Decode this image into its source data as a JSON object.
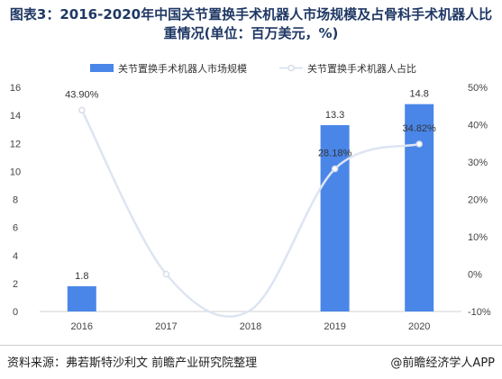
{
  "title": "图表3：2016-2020年中国关节置换手术机器人市场规模及占骨科手术机器人比重情况(单位：百万美元，%)",
  "source": "资料来源：弗若斯特沙利文 前瞻产业研究院整理",
  "brand": "@前瞻经济学人APP",
  "colors": {
    "bar": "#4a86e8",
    "line": "#dde4f2",
    "marker": "#d9dee6",
    "title": "#1f3864"
  },
  "chart_data": {
    "type": "bar",
    "categories": [
      "2016",
      "2017",
      "2018",
      "2019",
      "2020"
    ],
    "series": [
      {
        "name": "关节置换手术机器人市场规模",
        "kind": "bar",
        "axis": "left",
        "values": [
          1.8,
          null,
          null,
          13.3,
          14.8
        ],
        "labels": [
          "1.8",
          "",
          "",
          "13.3",
          "14.8"
        ]
      },
      {
        "name": "关节置换手术机器人占比",
        "kind": "line",
        "axis": "right",
        "values": [
          43.9,
          0,
          null,
          28.18,
          34.82
        ],
        "labels": [
          "43.90%",
          "",
          "",
          "28.18%",
          "34.82%"
        ]
      }
    ],
    "left_axis": {
      "min": 0,
      "max": 16,
      "ticks": [
        "0",
        "2",
        "4",
        "6",
        "8",
        "10",
        "12",
        "14",
        "16"
      ]
    },
    "right_axis": {
      "min": -10,
      "max": 50,
      "ticks": [
        "-10%",
        "0%",
        "10%",
        "20%",
        "30%",
        "40%",
        "50%"
      ]
    },
    "legend_position": "top",
    "grid": false
  }
}
